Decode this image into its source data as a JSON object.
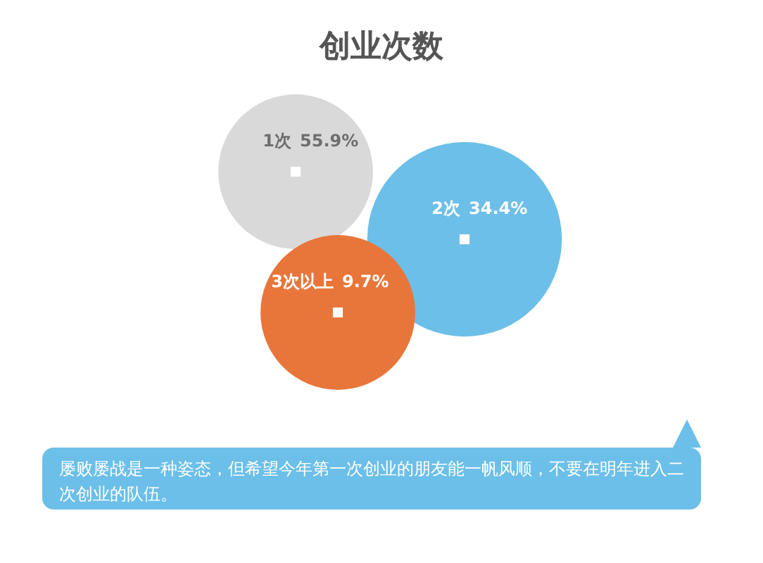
{
  "chart_data": {
    "type": "other",
    "title": "创业次数",
    "categories": [
      "1次",
      "2次",
      "3次以上"
    ],
    "values": [
      55.9,
      34.4,
      9.7
    ],
    "value_labels": [
      "55.9%",
      "34.4%",
      "9.7%"
    ],
    "colors": [
      "#d9d9d9",
      "#6cbfe8",
      "#e8763a"
    ],
    "annotations": [
      "屡败屡战是一种姿态，但希望今年第一次创业的朋友能一帆风顺，不要在明年进入二次创业的队伍。"
    ]
  }
}
